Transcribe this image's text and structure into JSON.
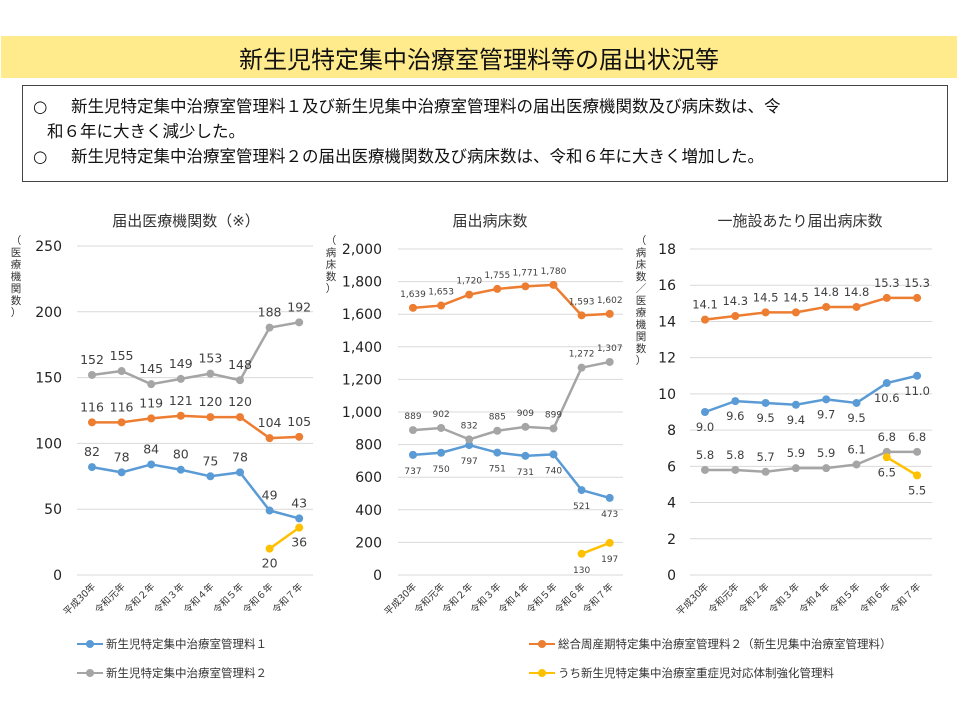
{
  "page": {
    "title": "新生児特定集中治療室管理料等の届出状況等",
    "summary": [
      {
        "bullet": "○",
        "text": "新生児特定集中治療室管理料１及び新生児集中治療室管理料の届出医療機関数及び病床数は、令",
        "continuation": "和６年に大きく減少した。"
      },
      {
        "bullet": "○",
        "text": "新生児特定集中治療室管理料２の届出医療機関数及び病床数は、令和６年に大きく増加した。",
        "continuation": ""
      }
    ]
  },
  "colors": {
    "banner": "#FFEB8C",
    "series1": "#5B9BD5",
    "series2": "#ED7D31",
    "series3": "#A5A5A5",
    "series4": "#FFC000"
  },
  "legend": [
    {
      "key": "s1",
      "label": "新生児特定集中治療室管理料１",
      "color": "#5B9BD5"
    },
    {
      "key": "s2",
      "label": "総合周産期特定集中治療室管理料２（新生児集中治療室管理料）",
      "color": "#ED7D31"
    },
    {
      "key": "s3",
      "label": "新生児特定集中治療室管理料２",
      "color": "#A5A5A5"
    },
    {
      "key": "s4",
      "label": "うち新生児特定集中治療室重症児対応体制強化管理料",
      "color": "#FFC000"
    }
  ],
  "chart_data": [
    {
      "type": "line",
      "title": "届出医療機関数（※）",
      "ylabel": "（医療機関数）",
      "xlabel": "",
      "categories": [
        "平成30年",
        "令和元年",
        "令和２年",
        "令和３年",
        "令和４年",
        "令和５年",
        "令和６年",
        "令和７年"
      ],
      "ylim": [
        0,
        250
      ],
      "yticks": [
        0,
        50,
        100,
        150,
        200,
        250
      ],
      "ytick_labels": [
        "0",
        "50",
        "100",
        "150",
        "200",
        "250"
      ],
      "grid": true,
      "series": [
        {
          "name": "新生児特定集中治療室管理料１",
          "color": "#5B9BD5",
          "values": [
            82,
            78,
            84,
            80,
            75,
            78,
            49,
            43
          ],
          "labels": [
            "82",
            "78",
            "84",
            "80",
            "75",
            "78",
            "49",
            "43"
          ],
          "label_pos": "above"
        },
        {
          "name": "総合周産期特定集中治療室管理料２（新生児集中治療室管理料）",
          "color": "#ED7D31",
          "values": [
            116,
            116,
            119,
            121,
            120,
            120,
            104,
            105
          ],
          "labels": [
            "116",
            "116",
            "119",
            "121",
            "120",
            "120",
            "104",
            "105"
          ],
          "label_pos": "above"
        },
        {
          "name": "新生児特定集中治療室管理料２",
          "color": "#A5A5A5",
          "values": [
            152,
            155,
            145,
            149,
            153,
            148,
            188,
            192
          ],
          "labels": [
            "152",
            "155",
            "145",
            "149",
            "153",
            "148",
            "188",
            "192"
          ],
          "label_pos": "above"
        },
        {
          "name": "うち新生児特定集中治療室重症児対応体制強化管理料",
          "color": "#FFC000",
          "values": [
            null,
            null,
            null,
            null,
            null,
            null,
            20,
            36
          ],
          "labels": [
            "",
            "",
            "",
            "",
            "",
            "",
            "20",
            "36"
          ],
          "label_pos": "below"
        }
      ]
    },
    {
      "type": "line",
      "title": "届出病床数",
      "ylabel": "（病床数）",
      "xlabel": "",
      "categories": [
        "平成30年",
        "令和元年",
        "令和２年",
        "令和３年",
        "令和４年",
        "令和５年",
        "令和６年",
        "令和７年"
      ],
      "ylim": [
        0,
        2000
      ],
      "yticks": [
        0,
        200,
        400,
        600,
        800,
        1000,
        1200,
        1400,
        1600,
        1800,
        2000
      ],
      "ytick_labels": [
        "0",
        "200",
        "400",
        "600",
        "800",
        "1,000",
        "1,200",
        "1,400",
        "1,600",
        "1,800",
        "2,000"
      ],
      "grid": true,
      "series": [
        {
          "name": "新生児特定集中治療室管理料１",
          "color": "#5B9BD5",
          "values": [
            737,
            750,
            797,
            751,
            731,
            740,
            521,
            473
          ],
          "labels": [
            "737",
            "750",
            "797",
            "751",
            "731",
            "740",
            "521",
            "473"
          ],
          "label_pos": "below"
        },
        {
          "name": "総合周産期特定集中治療室管理料２（新生児集中治療室管理料）",
          "color": "#ED7D31",
          "values": [
            1639,
            1653,
            1720,
            1755,
            1771,
            1780,
            1593,
            1602
          ],
          "labels": [
            "1,639",
            "1,653",
            "1,720",
            "1,755",
            "1,771",
            "1,780",
            "1,593",
            "1,602"
          ],
          "label_pos": "above"
        },
        {
          "name": "新生児特定集中治療室管理料２",
          "color": "#A5A5A5",
          "values": [
            889,
            902,
            832,
            885,
            909,
            899,
            1272,
            1307
          ],
          "labels": [
            "889",
            "902",
            "832",
            "885",
            "909",
            "899",
            "1,272",
            "1,307"
          ],
          "label_pos": "above"
        },
        {
          "name": "うち新生児特定集中治療室重症児対応体制強化管理料",
          "color": "#FFC000",
          "values": [
            null,
            null,
            null,
            null,
            null,
            null,
            130,
            197
          ],
          "labels": [
            "",
            "",
            "",
            "",
            "",
            "",
            "130",
            "197"
          ],
          "label_pos": "below"
        }
      ]
    },
    {
      "type": "line",
      "title": "一施設あたり届出病床数",
      "ylabel": "（病床数／医療機関数）",
      "xlabel": "",
      "categories": [
        "平成30年",
        "令和元年",
        "令和２年",
        "令和３年",
        "令和４年",
        "令和５年",
        "令和６年",
        "令和７年"
      ],
      "ylim": [
        0,
        18
      ],
      "yticks": [
        0,
        2,
        4,
        6,
        8,
        10,
        12,
        14,
        16,
        18
      ],
      "ytick_labels": [
        "0",
        "2",
        "4",
        "6",
        "8",
        "10",
        "12",
        "14",
        "16",
        "18"
      ],
      "grid": true,
      "series": [
        {
          "name": "新生児特定集中治療室管理料１",
          "color": "#5B9BD5",
          "values": [
            9.0,
            9.6,
            9.5,
            9.4,
            9.7,
            9.5,
            10.6,
            11.0
          ],
          "labels": [
            "9.0",
            "9.6",
            "9.5",
            "9.4",
            "9.7",
            "9.5",
            "10.6",
            "11.0"
          ],
          "label_pos": "below"
        },
        {
          "name": "総合周産期特定集中治療室管理料２（新生児集中治療室管理料）",
          "color": "#ED7D31",
          "values": [
            14.1,
            14.3,
            14.5,
            14.5,
            14.8,
            14.8,
            15.3,
            15.3
          ],
          "labels": [
            "14.1",
            "14.3",
            "14.5",
            "14.5",
            "14.8",
            "14.8",
            "15.3",
            "15.3"
          ],
          "label_pos": "above"
        },
        {
          "name": "新生児特定集中治療室管理料２",
          "color": "#A5A5A5",
          "values": [
            5.8,
            5.8,
            5.7,
            5.9,
            5.9,
            6.1,
            6.8,
            6.8
          ],
          "labels": [
            "5.8",
            "5.8",
            "5.7",
            "5.9",
            "5.9",
            "6.1",
            "6.8",
            "6.8"
          ],
          "label_pos": "above"
        },
        {
          "name": "うち新生児特定集中治療室重症児対応体制強化管理料",
          "color": "#FFC000",
          "values": [
            null,
            null,
            null,
            null,
            null,
            null,
            6.5,
            5.5
          ],
          "labels": [
            "",
            "",
            "",
            "",
            "",
            "",
            "6.5",
            "5.5"
          ],
          "label_pos": "below"
        }
      ]
    }
  ]
}
